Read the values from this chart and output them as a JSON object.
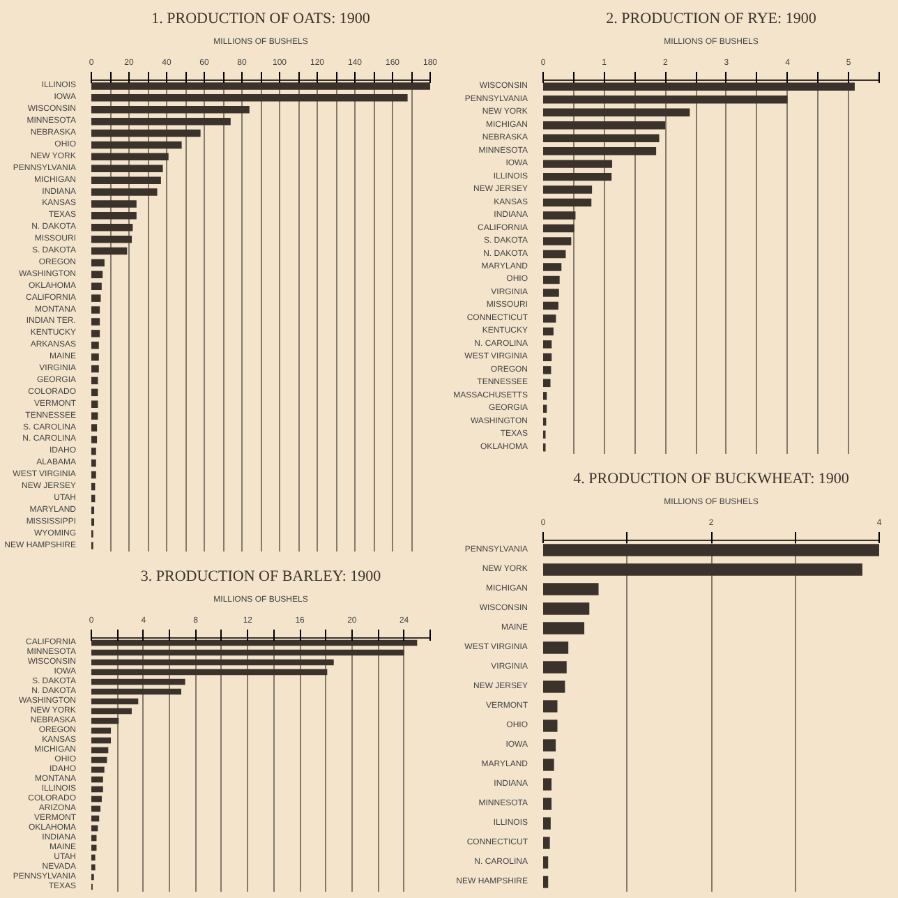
{
  "chart_data": [
    {
      "type": "bar",
      "orientation": "horizontal",
      "title": "1. PRODUCTION OF OATS: 1900",
      "xlabel": "MILLIONS OF BUSHELS",
      "color": "#3b322b",
      "grid": "x",
      "xlim": [
        0,
        180
      ],
      "xticks": [
        0,
        {
          "value": 10,
          "label": null
        },
        20,
        {
          "value": 30,
          "label": null
        },
        40,
        {
          "value": 50,
          "label": null
        },
        60,
        {
          "value": 70,
          "label": null
        },
        80,
        {
          "value": 90,
          "label": null
        },
        100,
        {
          "value": 110,
          "label": null
        },
        120,
        {
          "value": 130,
          "label": null
        },
        140,
        {
          "value": 150,
          "label": null
        },
        160,
        {
          "value": 170,
          "label": null
        },
        180
      ],
      "categories": [
        "ILLINOIS",
        "IOWA",
        "WISCONSIN",
        "MINNESOTA",
        "NEBRASKA",
        "OHIO",
        "NEW YORK",
        "PENNSYLVANIA",
        "MICHIGAN",
        "INDIANA",
        "KANSAS",
        "TEXAS",
        "N. DAKOTA",
        "MISSOURI",
        "S. DAKOTA",
        "OREGON",
        "WASHINGTON",
        "OKLAHOMA",
        "CALIFORNIA",
        "MONTANA",
        "INDIAN TER.",
        "KENTUCKY",
        "ARKANSAS",
        "MAINE",
        "VIRGINIA",
        "GEORGIA",
        "COLORADO",
        "VERMONT",
        "TENNESSEE",
        "S. CAROLINA",
        "N. CAROLINA",
        "IDAHO",
        "ALABAMA",
        "WEST VIRGINIA",
        "NEW JERSEY",
        "UTAH",
        "MARYLAND",
        "MISSISSIPPI",
        "WYOMING",
        "NEW HAMPSHIRE"
      ],
      "values": [
        180,
        168,
        84,
        74,
        58,
        48,
        41,
        38,
        37,
        35,
        24,
        24,
        22,
        21.5,
        19,
        7,
        6,
        5.5,
        5,
        4.5,
        4.5,
        4.5,
        4,
        4,
        4,
        3.5,
        3.5,
        3.5,
        3.5,
        3,
        3,
        2.5,
        2.5,
        2.5,
        2,
        2,
        1.5,
        1.5,
        1,
        1
      ]
    },
    {
      "type": "bar",
      "orientation": "horizontal",
      "title": "2. PRODUCTION OF RYE: 1900",
      "xlabel": "MILLIONS OF BUSHELS",
      "color": "#3b322b",
      "grid": "x",
      "xlim": [
        0,
        5.5
      ],
      "xticks": [
        0,
        {
          "value": 0.5,
          "label": null
        },
        1,
        {
          "value": 1.5,
          "label": null
        },
        2,
        {
          "value": 2.5,
          "label": null
        },
        3,
        {
          "value": 3.5,
          "label": null
        },
        4,
        {
          "value": 4.5,
          "label": null
        },
        5,
        {
          "value": 5.5,
          "label": null
        }
      ],
      "categories": [
        "WISCONSIN",
        "PENNSYLVANIA",
        "NEW YORK",
        "MICHIGAN",
        "NEBRASKA",
        "MINNESOTA",
        "IOWA",
        "ILLINOIS",
        "NEW JERSEY",
        "KANSAS",
        "INDIANA",
        "CALIFORNIA",
        "S. DAKOTA",
        "N. DAKOTA",
        "MARYLAND",
        "OHIO",
        "VIRGINIA",
        "MISSOURI",
        "CONNECTICUT",
        "KENTUCKY",
        "N. CAROLINA",
        "WEST VIRGINIA",
        "OREGON",
        "TENNESSEE",
        "MASSACHUSETTS",
        "GEORGIA",
        "WASHINGTON",
        "TEXAS",
        "OKLAHOMA"
      ],
      "values": [
        5.1,
        4.0,
        2.4,
        2.0,
        1.9,
        1.85,
        1.13,
        1.12,
        0.8,
        0.79,
        0.53,
        0.51,
        0.46,
        0.37,
        0.3,
        0.27,
        0.26,
        0.25,
        0.21,
        0.17,
        0.14,
        0.14,
        0.13,
        0.12,
        0.06,
        0.06,
        0.05,
        0.04,
        0.04
      ]
    },
    {
      "type": "bar",
      "orientation": "horizontal",
      "title": "3. PRODUCTION OF BARLEY: 1900",
      "xlabel": "MILLIONS OF BUSHELS",
      "color": "#3b322b",
      "grid": "x",
      "xlim": [
        0,
        26
      ],
      "xticks": [
        0,
        {
          "value": 2,
          "label": null
        },
        4,
        {
          "value": 6,
          "label": null
        },
        8,
        {
          "value": 10,
          "label": null
        },
        12,
        {
          "value": 14,
          "label": null
        },
        16,
        {
          "value": 18,
          "label": null
        },
        20,
        {
          "value": 22,
          "label": null
        },
        24,
        {
          "value": 26,
          "label": null
        }
      ],
      "categories": [
        "CALIFORNIA",
        "MINNESOTA",
        "WISCONSIN",
        "IOWA",
        "S. DAKOTA",
        "N. DAKOTA",
        "WASHINGTON",
        "NEW YORK",
        "NEBRASKA",
        "OREGON",
        "KANSAS",
        "MICHIGAN",
        "OHIO",
        "IDAHO",
        "MONTANA",
        "ILLINOIS",
        "COLORADO",
        "ARIZONA",
        "VERMONT",
        "OKLAHOMA",
        "INDIANA",
        "MAINE",
        "UTAH",
        "NEVADA",
        "PENNSYLVANIA",
        "TEXAS"
      ],
      "values": [
        25,
        24,
        18.6,
        18.1,
        7.2,
        6.9,
        3.6,
        3.1,
        2.1,
        1.5,
        1.5,
        1.3,
        1.2,
        1.0,
        0.9,
        0.9,
        0.8,
        0.7,
        0.6,
        0.5,
        0.4,
        0.4,
        0.3,
        0.3,
        0.2,
        0.1
      ]
    },
    {
      "type": "bar",
      "orientation": "horizontal",
      "title": "4. PRODUCTION OF BUCKWHEAT: 1900",
      "xlabel": "MILLIONS OF BUSHELS",
      "color": "#3b322b",
      "grid": "x",
      "xlim": [
        0,
        4
      ],
      "xticks": [
        0,
        {
          "value": 1,
          "label": null
        },
        2,
        {
          "value": 3,
          "label": null
        },
        4
      ],
      "categories": [
        "PENNSYLVANIA",
        "NEW YORK",
        "MICHIGAN",
        "WISCONSIN",
        "MAINE",
        "WEST VIRGINIA",
        "VIRGINIA",
        "NEW JERSEY",
        "VERMONT",
        "OHIO",
        "IOWA",
        "MARYLAND",
        "INDIANA",
        "MINNESOTA",
        "ILLINOIS",
        "CONNECTICUT",
        "N. CAROLINA",
        "NEW HAMPSHIRE"
      ],
      "values": [
        4.0,
        3.8,
        0.66,
        0.55,
        0.49,
        0.3,
        0.28,
        0.26,
        0.17,
        0.17,
        0.15,
        0.13,
        0.1,
        0.1,
        0.09,
        0.08,
        0.06,
        0.06
      ]
    }
  ]
}
